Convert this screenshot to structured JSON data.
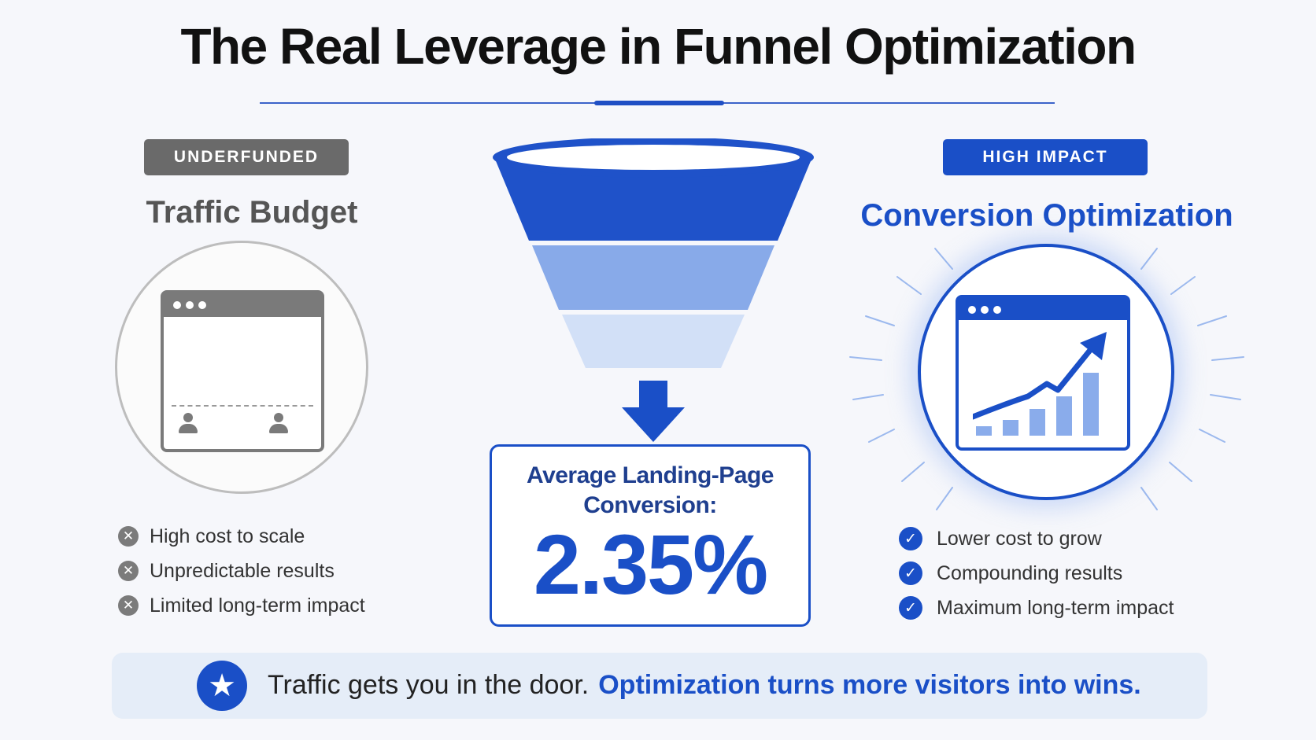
{
  "title": "The Real Leverage in Funnel Optimization",
  "left": {
    "badge": "UNDERFUNDED",
    "title": "Traffic Budget",
    "items": [
      {
        "icon": "x-circle-icon",
        "text": "High cost to scale"
      },
      {
        "icon": "x-circle-icon",
        "text": "Unpredictable results"
      },
      {
        "icon": "x-circle-icon",
        "text": "Limited long-term impact"
      }
    ]
  },
  "center": {
    "label_line1": "Average Landing-Page",
    "label_line2": "Conversion:",
    "value": "2.35%"
  },
  "right": {
    "badge": "HIGH IMPACT",
    "title": "Conversion Optimization",
    "items": [
      {
        "icon": "check-circle-icon",
        "text": "Lower cost to grow"
      },
      {
        "icon": "check-circle-icon",
        "text": "Compounding results"
      },
      {
        "icon": "check-circle-icon",
        "text": "Maximum long-term impact"
      }
    ]
  },
  "banner": {
    "icon": "star-icon",
    "plain_text": "Traffic gets you in the door.",
    "accent_text": "Optimization turns more visitors into wins."
  },
  "colors": {
    "accent": "#1a4fc7",
    "neutral": "#7a7a7a",
    "background": "#f6f7fb",
    "banner_bg": "#e5edf8"
  }
}
